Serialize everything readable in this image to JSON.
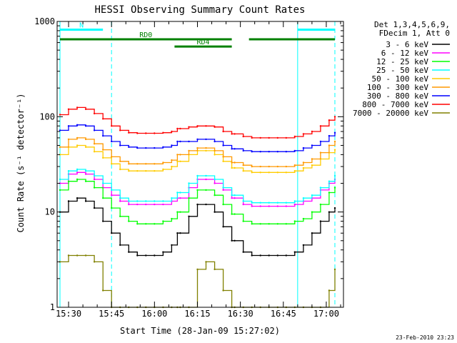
{
  "chart_data": {
    "type": "line",
    "title": "HESSI Observing Summary Count Rates",
    "xlabel": "Start Time (28-Jan-09 15:27:02)",
    "ylabel": "Count Rate (s⁻¹ detector⁻¹)",
    "y_scale": "log",
    "ylim": [
      1,
      1000
    ],
    "xlim": [
      "15:26",
      "17:06"
    ],
    "x_ticks": [
      "15:30",
      "15:45",
      "16:00",
      "16:15",
      "16:30",
      "16:45",
      "17:00"
    ],
    "y_ticks": [
      "1",
      "10",
      "100",
      "1000"
    ],
    "grid": false,
    "timestamp": "23-Feb-2010 23:23",
    "legend_header": [
      "Det 1,3,4,5,6,9,",
      "FDecim 1, Att 0"
    ],
    "legend_position": "top-right, outside plot",
    "x": [
      "15:27",
      "15:30",
      "15:33",
      "15:36",
      "15:39",
      "15:42",
      "15:45",
      "15:48",
      "15:51",
      "15:54",
      "15:57",
      "16:00",
      "16:03",
      "16:06",
      "16:08",
      "16:09",
      "16:12",
      "16:15",
      "16:18",
      "16:21",
      "16:24",
      "16:27",
      "16:28",
      "16:31",
      "16:34",
      "16:37",
      "16:40",
      "16:43",
      "16:46",
      "16:49",
      "16:52",
      "16:55",
      "16:58",
      "17:01",
      "17:03"
    ],
    "series": [
      {
        "name": "3 - 6 keV",
        "color": "#000000",
        "values": [
          10,
          13,
          14,
          13,
          11,
          8,
          6,
          4.5,
          3.8,
          3.5,
          3.5,
          3.5,
          3.8,
          4.5,
          6,
          6,
          9,
          12,
          12,
          10,
          7,
          5,
          5,
          3.8,
          3.5,
          3.5,
          3.5,
          3.5,
          3.5,
          3.8,
          4.5,
          6,
          8,
          10,
          11
        ]
      },
      {
        "name": "6 - 12 keV",
        "color": "#ff00ff",
        "values": [
          20,
          25,
          26,
          25,
          22,
          18,
          15,
          13,
          12,
          12,
          12,
          12,
          12,
          13,
          14,
          14,
          18,
          22,
          22,
          20,
          17,
          14,
          14,
          12,
          11.5,
          11.5,
          11.5,
          11.5,
          11.5,
          12,
          13,
          14,
          17,
          20,
          22
        ]
      },
      {
        "name": "12 - 25 keV",
        "color": "#00ff00",
        "values": [
          17,
          21,
          22,
          21,
          18,
          14,
          11,
          9,
          8,
          7.5,
          7.5,
          7.5,
          8,
          8.5,
          10,
          10,
          14,
          17,
          17,
          15,
          12,
          9.5,
          9.5,
          8,
          7.5,
          7.5,
          7.5,
          7.5,
          7.5,
          8,
          8.5,
          10,
          12,
          16,
          18
        ]
      },
      {
        "name": "25 - 50 keV",
        "color": "#00ffff",
        "values": [
          22,
          27,
          28,
          27,
          24,
          20,
          17,
          14,
          13,
          13,
          13,
          13,
          13,
          14,
          16,
          16,
          20,
          24,
          24,
          22,
          18,
          15,
          15,
          13,
          12.5,
          12.5,
          12.5,
          12.5,
          12.5,
          13,
          14,
          15,
          18,
          21,
          24
        ]
      },
      {
        "name": "50 - 100 keV",
        "color": "#ffcc00",
        "values": [
          40,
          48,
          50,
          48,
          43,
          37,
          32,
          28,
          27,
          27,
          27,
          27,
          28,
          30,
          34,
          34,
          40,
          44,
          44,
          40,
          34,
          29,
          29,
          27,
          26,
          26,
          26,
          26,
          26,
          27,
          29,
          31,
          36,
          42,
          45
        ]
      },
      {
        "name": "100 - 300 keV",
        "color": "#ff9900",
        "values": [
          48,
          58,
          60,
          58,
          52,
          45,
          38,
          34,
          32,
          32,
          32,
          32,
          33,
          35,
          40,
          40,
          44,
          47,
          47,
          44,
          38,
          33,
          33,
          31,
          30,
          30,
          30,
          30,
          30,
          31,
          33,
          36,
          42,
          50,
          55
        ]
      },
      {
        "name": "300 - 800 keV",
        "color": "#0000ff",
        "values": [
          72,
          80,
          82,
          80,
          72,
          63,
          55,
          50,
          48,
          47,
          47,
          47,
          48,
          50,
          55,
          55,
          55,
          58,
          58,
          55,
          50,
          46,
          46,
          44,
          43,
          43,
          43,
          43,
          43,
          44,
          47,
          50,
          55,
          63,
          68
        ]
      },
      {
        "name": "800 - 7000 keV",
        "color": "#ff0000",
        "values": [
          105,
          120,
          125,
          120,
          108,
          95,
          80,
          72,
          68,
          67,
          67,
          67,
          68,
          70,
          75,
          75,
          78,
          80,
          80,
          78,
          70,
          66,
          66,
          62,
          60,
          60,
          60,
          60,
          60,
          62,
          66,
          70,
          80,
          92,
          100
        ]
      },
      {
        "name": "7000 - 20000 keV",
        "color": "#808000",
        "values": [
          3,
          3.5,
          3.5,
          3.5,
          3,
          1.5,
          1,
          1,
          1,
          1,
          1,
          1,
          1,
          1,
          1,
          1,
          1,
          2.5,
          3,
          2.5,
          1.5,
          1,
          1,
          1,
          1,
          1,
          1,
          1,
          1,
          1,
          1,
          1,
          1,
          1.5,
          2.5
        ]
      }
    ],
    "annotations": [
      {
        "label": "N",
        "kind": "night",
        "color": "#00ffff",
        "start": "15:27",
        "end": "15:42",
        "y": 820
      },
      {
        "label": "",
        "kind": "night",
        "color": "#00ffff",
        "start": "16:50",
        "end": "17:03",
        "y": 820
      },
      {
        "label": "RD0",
        "kind": "data-segment",
        "color": "#008000",
        "start": "15:27",
        "end": "16:27",
        "y": 650
      },
      {
        "label": "",
        "kind": "data-segment",
        "color": "#008000",
        "start": "16:33",
        "end": "17:03",
        "y": 650
      },
      {
        "label": "RD4",
        "kind": "data-segment",
        "color": "#008000",
        "start": "16:07",
        "end": "16:27",
        "y": 545
      }
    ],
    "vertical_markers": [
      {
        "time": "15:27",
        "color": "#00ffff",
        "style": "solid"
      },
      {
        "time": "15:45",
        "color": "#00ffff",
        "style": "dashed"
      },
      {
        "time": "16:50",
        "color": "#00ffff",
        "style": "solid"
      },
      {
        "time": "17:03",
        "color": "#00ffff",
        "style": "dashed"
      }
    ]
  }
}
